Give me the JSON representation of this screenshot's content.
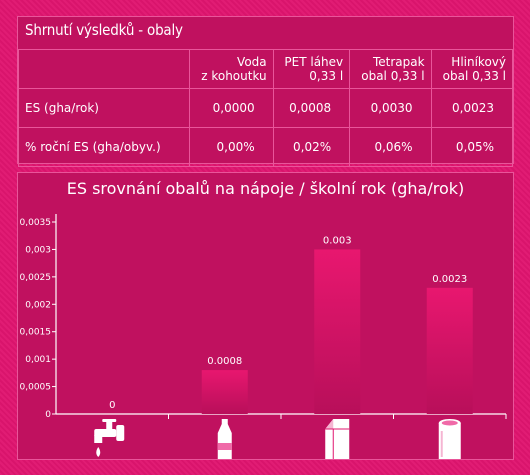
{
  "summary": {
    "title": "Shrnutí výsledků - obaly",
    "columns": [
      {
        "line1": "Voda",
        "line2": "z kohoutku"
      },
      {
        "line1": "PET láhev",
        "line2": "0,33 l"
      },
      {
        "line1": "Tetrapak",
        "line2": "obal 0,33 l"
      },
      {
        "line1": "Hliníkový",
        "line2": "obal 0,33 l"
      }
    ],
    "rows": [
      {
        "label": "ES (gha/rok)",
        "values": [
          "0,0000",
          "0,0008",
          "0,0030",
          "0,0023"
        ]
      },
      {
        "label": "% roční ES (gha/obyv.)",
        "values": [
          "0,00%",
          "0,02%",
          "0,06%",
          "0,05%"
        ]
      }
    ]
  },
  "chart_data": {
    "type": "bar",
    "title": "ES srovnání obalů na nápoje / školní rok (gha/rok)",
    "categories": [
      "tap-water-icon",
      "pet-bottle-icon",
      "tetrapak-icon",
      "aluminium-can-icon"
    ],
    "values": [
      0,
      0.0008,
      0.003,
      0.0023
    ],
    "data_labels": [
      "0",
      "0.0008",
      "0.003",
      "0.0023"
    ],
    "ylim": [
      0,
      0.0035
    ],
    "yticks": [
      "0",
      "0,0005",
      "0,001",
      "0,0015",
      "0,002",
      "0,0025",
      "0,003",
      "0,0035"
    ],
    "bar_color": "#d81368"
  }
}
